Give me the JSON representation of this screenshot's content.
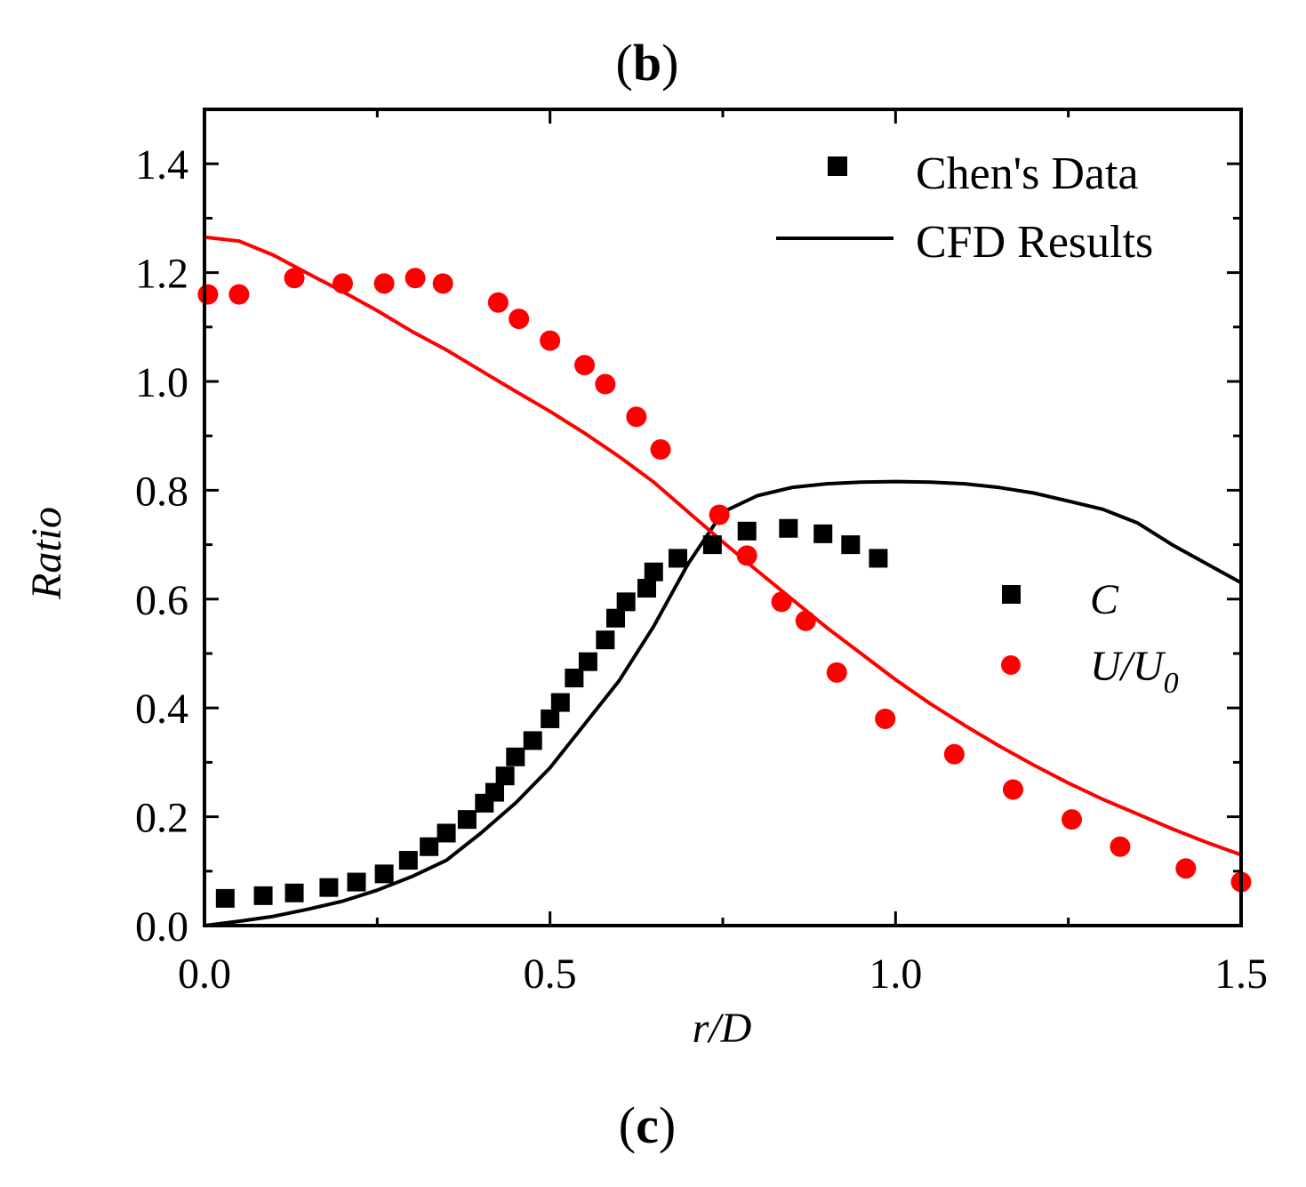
{
  "panel_top": {
    "open": "(",
    "letter": "b",
    "close": ")"
  },
  "panel_bottom": {
    "open": "(",
    "letter": "c",
    "close": ")"
  },
  "chart_data": {
    "type": "scatter",
    "xlabel": "r/D",
    "ylabel": "Ratio",
    "xlim": [
      0,
      1.5
    ],
    "ylim": [
      0,
      1.5
    ],
    "x_ticks": [
      "0.0",
      "0.5",
      "1.0",
      "1.5"
    ],
    "y_ticks": [
      "0.0",
      "0.2",
      "0.4",
      "0.6",
      "0.8",
      "1.0",
      "1.2",
      "1.4"
    ],
    "legend_style": {
      "square_label": "Chen's Data",
      "line_label": "CFD Results"
    },
    "legend_vars": {
      "c_label": "C",
      "u_label": "U/U",
      "u_subscript": "0"
    },
    "legend_placement": "top-right",
    "colors": {
      "C": "#000000",
      "U": "#ff0000"
    },
    "series": [
      {
        "name": "C",
        "kind": "markers",
        "marker": "square",
        "x": [
          0.03,
          0.085,
          0.13,
          0.18,
          0.22,
          0.26,
          0.295,
          0.325,
          0.35,
          0.38,
          0.405,
          0.42,
          0.435,
          0.45,
          0.475,
          0.5,
          0.515,
          0.535,
          0.555,
          0.58,
          0.595,
          0.61,
          0.64,
          0.65,
          0.685,
          0.735,
          0.785,
          0.845,
          0.895,
          0.935,
          0.975
        ],
        "y": [
          0.05,
          0.055,
          0.06,
          0.07,
          0.08,
          0.095,
          0.12,
          0.145,
          0.17,
          0.195,
          0.225,
          0.245,
          0.275,
          0.31,
          0.34,
          0.38,
          0.41,
          0.455,
          0.485,
          0.525,
          0.565,
          0.595,
          0.62,
          0.65,
          0.675,
          0.7,
          0.725,
          0.73,
          0.72,
          0.7,
          0.675
        ]
      },
      {
        "name": "U/U0",
        "kind": "markers",
        "marker": "circle",
        "x": [
          0.005,
          0.05,
          0.13,
          0.2,
          0.26,
          0.305,
          0.345,
          0.425,
          0.455,
          0.5,
          0.55,
          0.58,
          0.625,
          0.66,
          0.745,
          0.785,
          0.835,
          0.87,
          0.915,
          0.985,
          1.085,
          1.17,
          1.255,
          1.325,
          1.42,
          1.5
        ],
        "y": [
          1.16,
          1.16,
          1.19,
          1.18,
          1.18,
          1.19,
          1.18,
          1.145,
          1.115,
          1.075,
          1.03,
          0.995,
          0.935,
          0.875,
          0.755,
          0.68,
          0.595,
          0.56,
          0.465,
          0.38,
          0.315,
          0.25,
          0.195,
          0.145,
          0.105,
          0.08
        ]
      },
      {
        "name": "C",
        "kind": "line",
        "x": [
          0.0,
          0.05,
          0.1,
          0.15,
          0.2,
          0.25,
          0.3,
          0.35,
          0.4,
          0.45,
          0.5,
          0.55,
          0.6,
          0.65,
          0.7,
          0.75,
          0.8,
          0.85,
          0.9,
          0.95,
          1.0,
          1.05,
          1.1,
          1.15,
          1.2,
          1.25,
          1.3,
          1.35,
          1.4,
          1.45,
          1.5
        ],
        "y": [
          0.0,
          0.008,
          0.017,
          0.03,
          0.045,
          0.065,
          0.09,
          0.12,
          0.17,
          0.225,
          0.29,
          0.37,
          0.45,
          0.55,
          0.665,
          0.76,
          0.79,
          0.805,
          0.812,
          0.815,
          0.816,
          0.815,
          0.812,
          0.805,
          0.795,
          0.78,
          0.765,
          0.74,
          0.7,
          0.665,
          0.63
        ]
      },
      {
        "name": "U/U0",
        "kind": "line",
        "x": [
          0.0,
          0.05,
          0.1,
          0.15,
          0.2,
          0.25,
          0.3,
          0.35,
          0.4,
          0.45,
          0.5,
          0.55,
          0.6,
          0.65,
          0.7,
          0.75,
          0.8,
          0.85,
          0.9,
          0.95,
          1.0,
          1.05,
          1.1,
          1.15,
          1.2,
          1.25,
          1.3,
          1.35,
          1.4,
          1.45,
          1.5
        ],
        "y": [
          1.265,
          1.258,
          1.232,
          1.198,
          1.165,
          1.13,
          1.092,
          1.058,
          1.02,
          0.982,
          0.945,
          0.905,
          0.862,
          0.815,
          0.76,
          0.705,
          0.652,
          0.6,
          0.548,
          0.5,
          0.452,
          0.408,
          0.368,
          0.33,
          0.295,
          0.262,
          0.232,
          0.205,
          0.178,
          0.153,
          0.13
        ]
      }
    ]
  }
}
